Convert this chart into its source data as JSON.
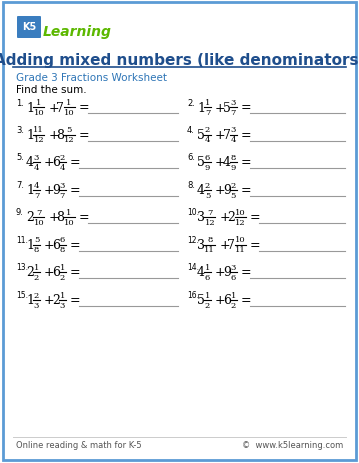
{
  "title": "Adding mixed numbers (like denominators)",
  "subtitle": "Grade 3 Fractions Worksheet",
  "instruction": "Find the sum.",
  "footer_left": "Online reading & math for K-5",
  "footer_right": "©  www.k5learning.com",
  "border_color": "#5b9bd5",
  "title_color": "#1f4e8c",
  "subtitle_color": "#2e75b6",
  "problems": [
    {
      "num": "1.",
      "w1": "1",
      "n1": "1",
      "d1": "10",
      "w2": "7",
      "n2": "1",
      "d2": "10"
    },
    {
      "num": "2.",
      "w1": "1",
      "n1": "1",
      "d1": "7",
      "w2": "5",
      "n2": "3",
      "d2": "7"
    },
    {
      "num": "3.",
      "w1": "1",
      "n1": "11",
      "d1": "12",
      "w2": "8",
      "n2": "5",
      "d2": "12"
    },
    {
      "num": "4.",
      "w1": "5",
      "n1": "2",
      "d1": "4",
      "w2": "7",
      "n2": "3",
      "d2": "4"
    },
    {
      "num": "5.",
      "w1": "4",
      "n1": "3",
      "d1": "4",
      "w2": "6",
      "n2": "2",
      "d2": "4"
    },
    {
      "num": "6.",
      "w1": "5",
      "n1": "6",
      "d1": "9",
      "w2": "4",
      "n2": "8",
      "d2": "9"
    },
    {
      "num": "7.",
      "w1": "1",
      "n1": "4",
      "d1": "7",
      "w2": "9",
      "n2": "3",
      "d2": "7"
    },
    {
      "num": "8.",
      "w1": "4",
      "n1": "2",
      "d1": "5",
      "w2": "9",
      "n2": "2",
      "d2": "5"
    },
    {
      "num": "9.",
      "w1": "2",
      "n1": "7",
      "d1": "10",
      "w2": "8",
      "n2": "1",
      "d2": "10"
    },
    {
      "num": "10.",
      "w1": "3",
      "n1": "7",
      "d1": "12",
      "w2": "2",
      "n2": "10",
      "d2": "12"
    },
    {
      "num": "11.",
      "w1": "1",
      "n1": "5",
      "d1": "8",
      "w2": "6",
      "n2": "6",
      "d2": "8"
    },
    {
      "num": "12.",
      "w1": "3",
      "n1": "8",
      "d1": "11",
      "w2": "7",
      "n2": "10",
      "d2": "11"
    },
    {
      "num": "13.",
      "w1": "2",
      "n1": "1",
      "d1": "2",
      "w2": "6",
      "n2": "1",
      "d2": "2"
    },
    {
      "num": "14.",
      "w1": "4",
      "n1": "1",
      "d1": "6",
      "w2": "9",
      "n2": "3",
      "d2": "6"
    },
    {
      "num": "15.",
      "w1": "1",
      "n1": "2",
      "d1": "3",
      "w2": "2",
      "n2": "1",
      "d2": "3"
    },
    {
      "num": "16.",
      "w1": "5",
      "n1": "1",
      "d1": "2",
      "w2": "6",
      "n2": "1",
      "d2": "2"
    }
  ]
}
